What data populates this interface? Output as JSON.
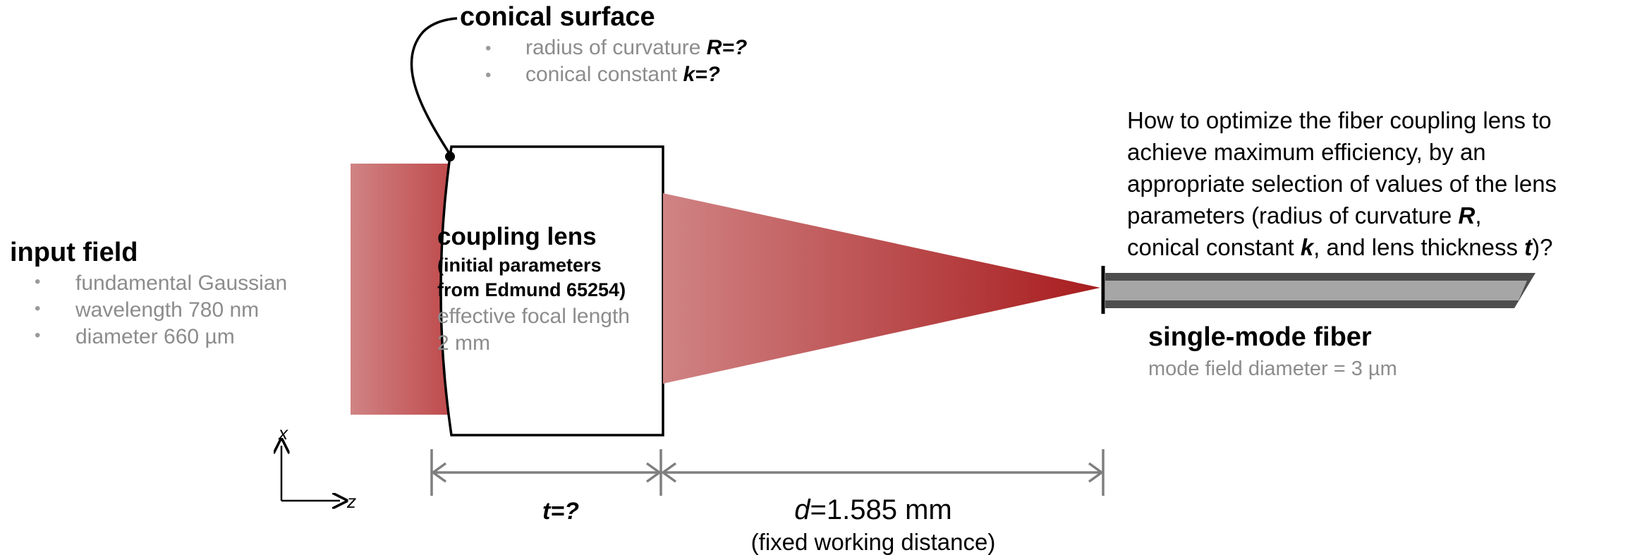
{
  "colors": {
    "beam_dark": "#a81c1e",
    "beam_light": "#d08384",
    "gray_text": "#8c8c8c",
    "dimension_gray": "#7f7f7f",
    "fiber_dark": "#4d4d4d",
    "fiber_core": "#a6a6a6"
  },
  "conical_surface": {
    "title": "conical surface",
    "bullet": "•",
    "radius_label": "radius of curvature ",
    "radius_symbol": "R=?",
    "conic_label": "conical constant ",
    "conic_symbol": "k=?"
  },
  "input_field": {
    "title": "input field",
    "bullet": "•",
    "items": [
      "fundamental Gaussian",
      "wavelength 780 nm",
      "diameter 660 µm"
    ]
  },
  "coupling_lens": {
    "title": "coupling lens",
    "sub_line1": "(initial parameters",
    "sub_line2": "from Edmund 65254)",
    "efl_line1": "effective focal length",
    "efl_line2": "2 mm"
  },
  "fiber": {
    "title": "single-mode fiber",
    "subtitle": "mode field diameter = 3 µm"
  },
  "question": {
    "line1": "How to optimize the fiber coupling lens to",
    "line2": "achieve maximum efficiency, by an",
    "line3": "appropriate selection of values of the lens",
    "line4_prefix": "parameters (radius of curvature ",
    "line4_symbol": "R",
    "line4_suffix": ",",
    "line5_a": "conical constant ",
    "line5_k": "k",
    "line5_b": ", and lens thickness ",
    "line5_t": "t",
    "line5_c": ")?"
  },
  "dimensions": {
    "thickness_label": "t=?",
    "distance_symbol": "d",
    "distance_value": "=1.585 mm",
    "distance_note": "(fixed working distance)"
  },
  "axes": {
    "x_label": "x",
    "z_label": "z"
  }
}
